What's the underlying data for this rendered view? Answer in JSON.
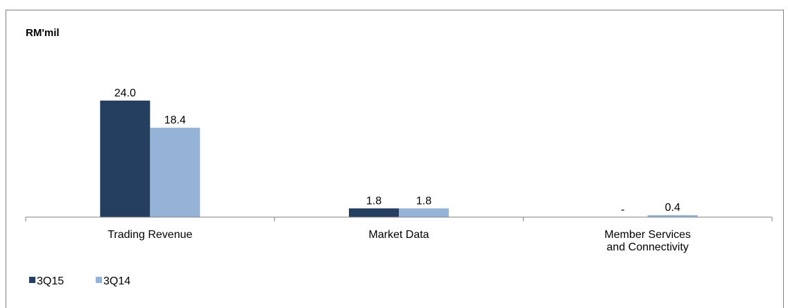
{
  "chart_data": {
    "type": "bar",
    "unit_label": "RM'mil",
    "categories": [
      [
        "Trading Revenue"
      ],
      [
        "Market Data"
      ],
      [
        "Member Services",
        "and Connectivity"
      ]
    ],
    "series": [
      {
        "name": "3Q15",
        "color": "#243f60",
        "values": [
          24.0,
          1.8,
          null
        ],
        "labels": [
          "24.0",
          "1.8",
          "-"
        ]
      },
      {
        "name": "3Q14",
        "color": "#95b3d7",
        "values": [
          18.4,
          1.8,
          0.4
        ],
        "labels": [
          "18.4",
          "1.8",
          "0.4"
        ]
      }
    ],
    "ylim": [
      0,
      24.0
    ],
    "grid": false,
    "legend_position": "bottom-left"
  }
}
